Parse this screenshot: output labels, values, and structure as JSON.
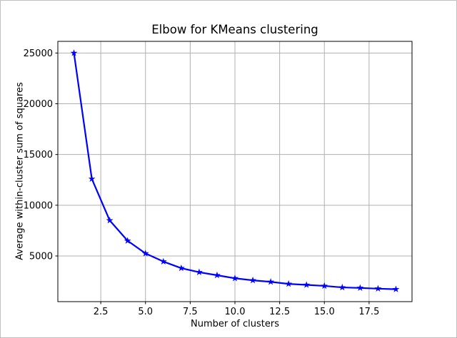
{
  "figure": {
    "background": "#ffffff",
    "border_color": "#c0c0c0"
  },
  "chart_data": {
    "type": "line",
    "title": "Elbow for KMeans clustering",
    "xlabel": "Number of clusters",
    "ylabel": "Average within-cluster sum of squares",
    "x": [
      1,
      2,
      3,
      4,
      5,
      6,
      7,
      8,
      9,
      10,
      11,
      12,
      13,
      14,
      15,
      16,
      17,
      18,
      19
    ],
    "y": [
      25000,
      12600,
      8500,
      6500,
      5250,
      4450,
      3800,
      3400,
      3100,
      2800,
      2600,
      2450,
      2250,
      2150,
      2050,
      1900,
      1850,
      1780,
      1720
    ],
    "xlim": [
      0.1,
      19.9
    ],
    "ylim": [
      500,
      26150
    ],
    "xticks": {
      "values": [
        2.5,
        5,
        7.5,
        10,
        12.5,
        15,
        17.5
      ],
      "labels": [
        "2.5",
        "5.0",
        "7.5",
        "10.0",
        "12.5",
        "15.0",
        "17.5"
      ]
    },
    "yticks": {
      "values": [
        5000,
        10000,
        15000,
        20000,
        25000
      ],
      "labels": [
        "5000",
        "10000",
        "15000",
        "20000",
        "25000"
      ]
    },
    "grid": true,
    "legend": false,
    "style": {
      "line_color": "#0000ff",
      "marker": "star",
      "marker_color": "#0000ff",
      "grid_color": "#b0b0b0",
      "spine_color": "#000000",
      "text_color": "#000000"
    }
  }
}
